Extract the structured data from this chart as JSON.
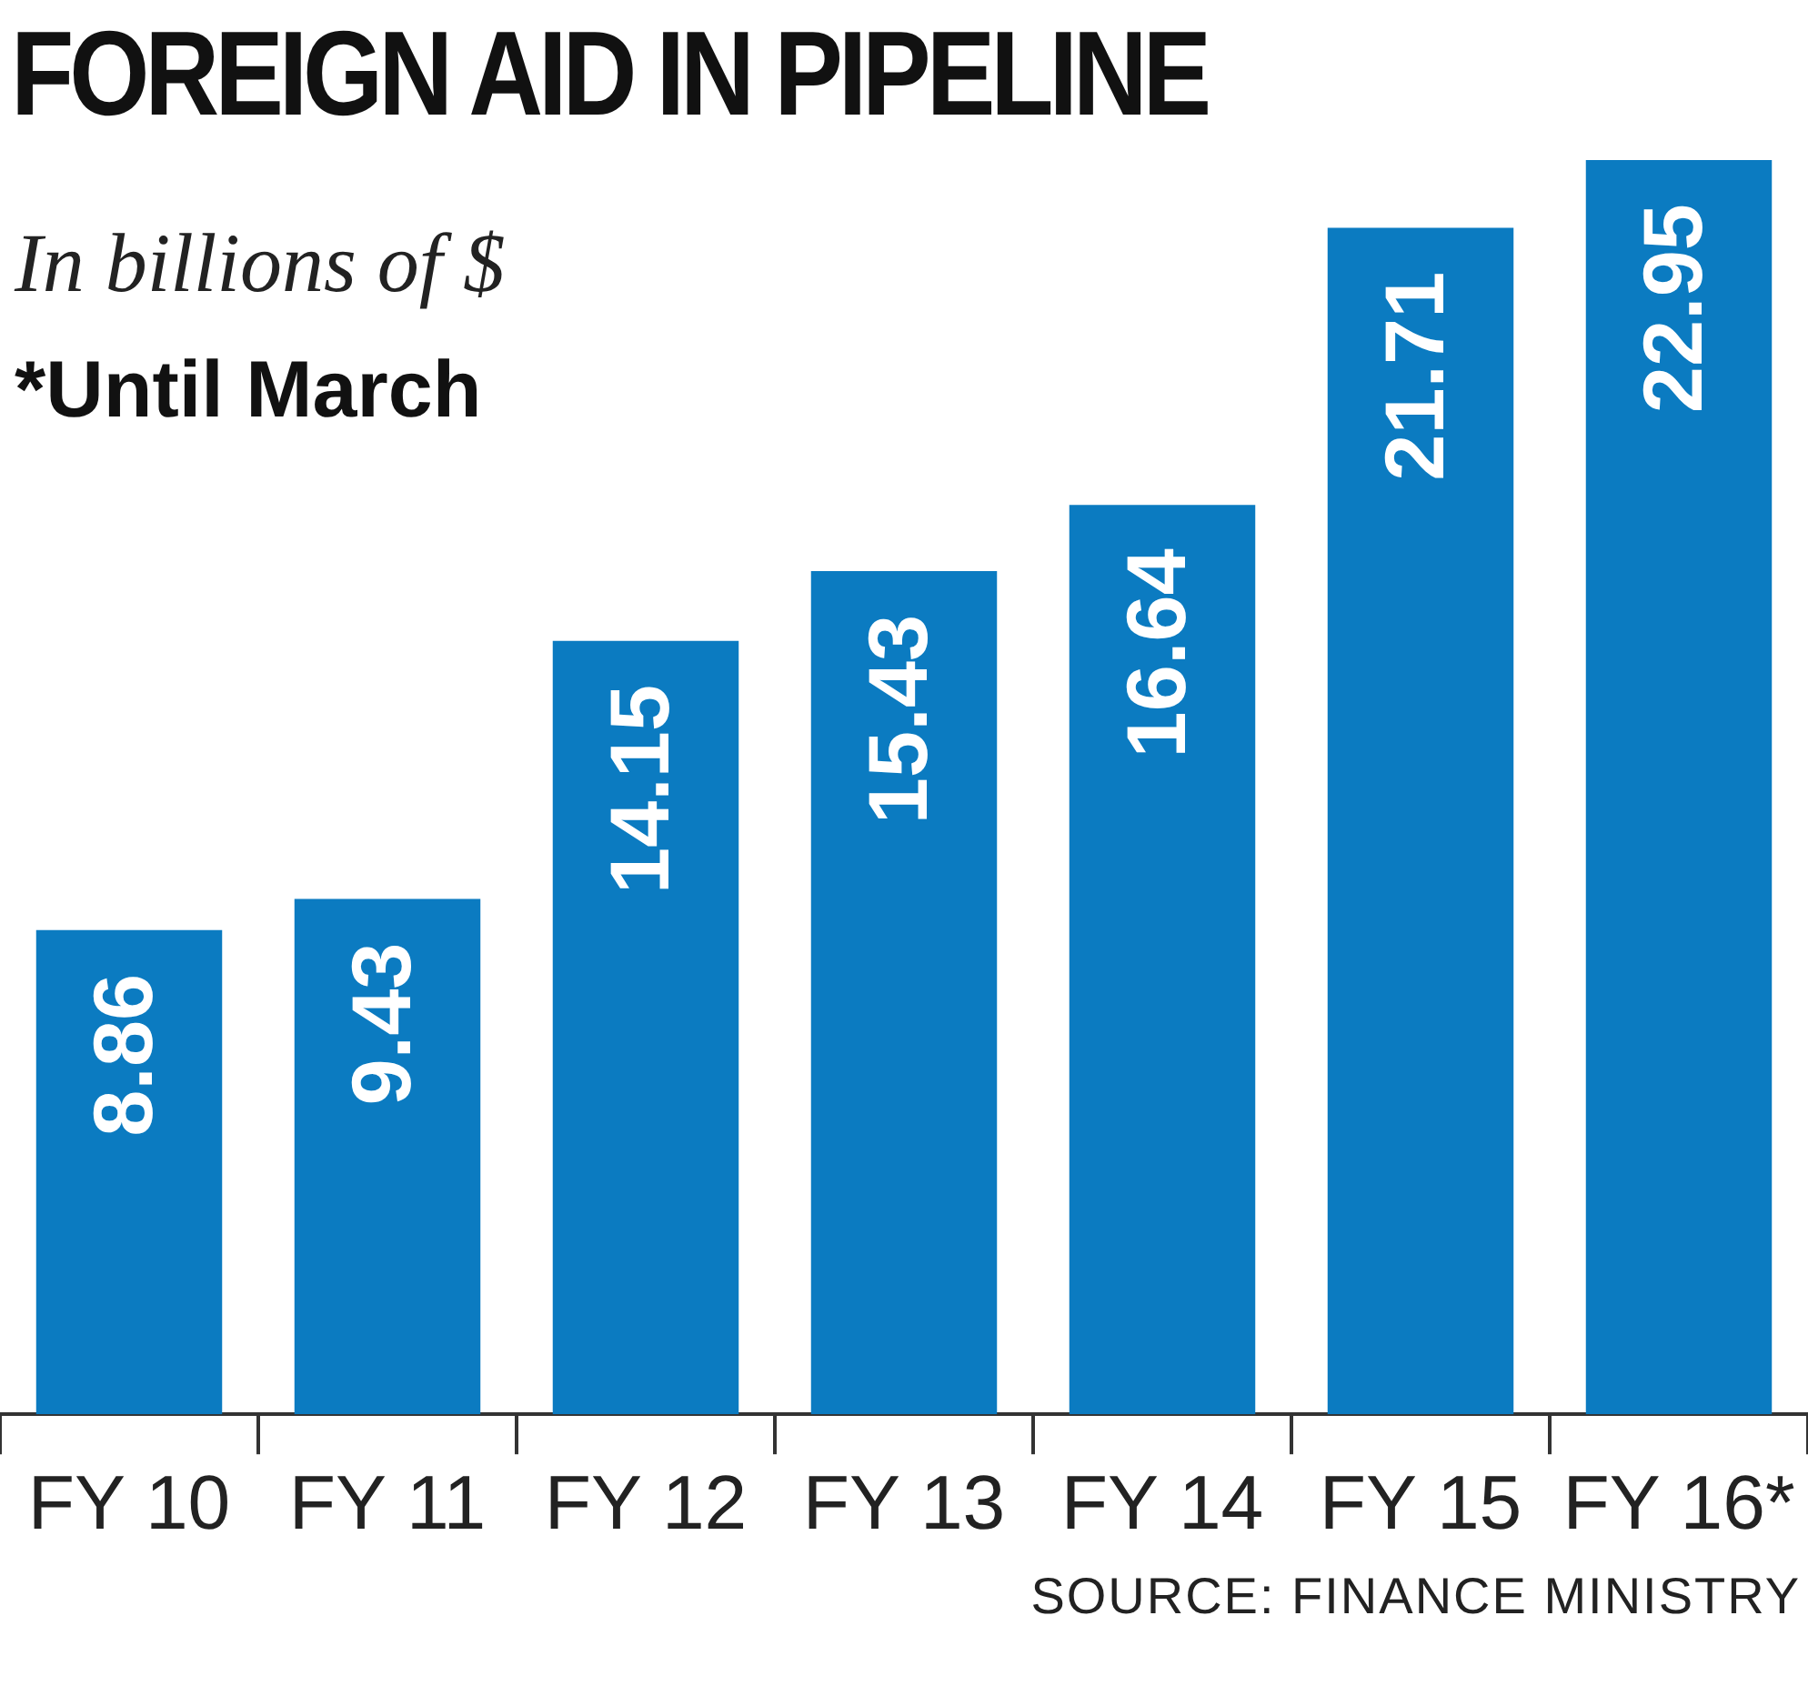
{
  "chart_data": {
    "type": "bar",
    "title": "FOREIGN AID IN PIPELINE",
    "subtitle": "In billions of $",
    "annotations": [
      "*Until March",
      "SOURCE: FINANCE MINISTRY"
    ],
    "categories": [
      "FY 10",
      "FY 11",
      "FY 12",
      "FY 13",
      "FY 14",
      "FY 15",
      "FY 16*"
    ],
    "values": [
      8.86,
      9.43,
      14.15,
      15.43,
      16.64,
      21.71,
      22.95
    ],
    "color": "#0b7bc1",
    "data_labels": true
  }
}
